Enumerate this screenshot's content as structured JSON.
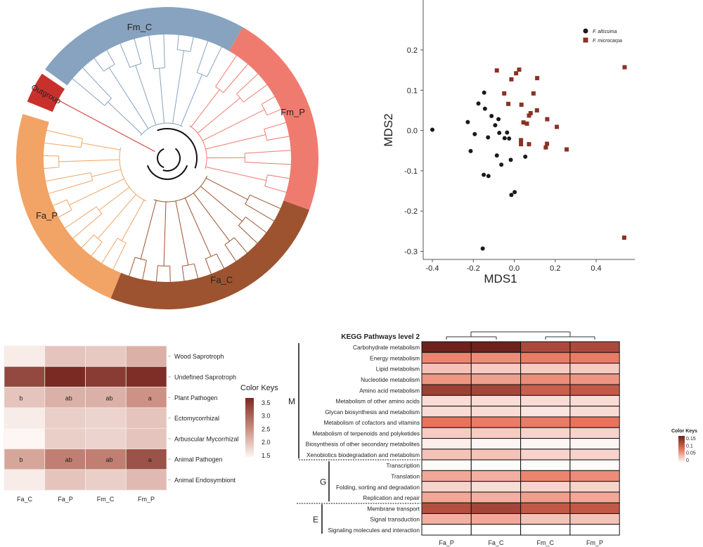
{
  "chart_data": [
    {
      "type": "other",
      "kind": "circular-dendrogram",
      "clades": [
        {
          "label": "Fm_C",
          "color": "#87a3c0",
          "leaves": 12
        },
        {
          "label": "Fm_P",
          "color": "#ef7b6f",
          "leaves": 12
        },
        {
          "label": "Fa_C",
          "color": "#9d5330",
          "leaves": 14
        },
        {
          "label": "Fa_P",
          "color": "#f1a466",
          "leaves": 14
        },
        {
          "label": "Outgroup",
          "color": "#c8312b",
          "leaves": 1
        }
      ]
    },
    {
      "type": "scatter",
      "xlabel": "MDS1",
      "ylabel": "MDS2",
      "xlim": [
        -0.45,
        0.57
      ],
      "ylim": [
        -0.32,
        0.28
      ],
      "xticks": [
        "-0.4",
        "-0.2",
        "0.0",
        "0.2",
        "0.4"
      ],
      "yticks": [
        "0.2",
        "0.1",
        "0.0",
        "-0.1",
        "-0.2",
        "-0.3"
      ],
      "legend_position": "top-right",
      "series": [
        {
          "name": "F. altissima",
          "marker": "circle",
          "color": "#1a1a1a",
          "points": [
            [
              -0.4,
              0.002
            ],
            [
              -0.147,
              0.094
            ],
            [
              -0.175,
              0.067
            ],
            [
              -0.143,
              0.054
            ],
            [
              -0.111,
              0.036
            ],
            [
              -0.077,
              0.028
            ],
            [
              -0.227,
              0.021
            ],
            [
              -0.093,
              0.013
            ],
            [
              -0.193,
              -0.009
            ],
            [
              -0.128,
              -0.017
            ],
            [
              -0.073,
              -0.006
            ],
            [
              -0.035,
              -0.005
            ],
            [
              -0.047,
              -0.019
            ],
            [
              -0.025,
              -0.02
            ],
            [
              -0.213,
              -0.051
            ],
            [
              -0.085,
              -0.062
            ],
            [
              0.054,
              -0.065
            ],
            [
              -0.063,
              -0.085
            ],
            [
              -0.017,
              -0.073
            ],
            [
              -0.149,
              -0.11
            ],
            [
              -0.126,
              -0.113
            ],
            [
              -0.014,
              -0.16
            ],
            [
              0.002,
              -0.153
            ],
            [
              -0.154,
              -0.293
            ]
          ]
        },
        {
          "name": "F. microcarpa",
          "marker": "square",
          "color": "#8b3124",
          "points": [
            [
              -0.085,
              0.149
            ],
            [
              0.009,
              0.142
            ],
            [
              0.024,
              0.151
            ],
            [
              -0.014,
              0.127
            ],
            [
              0.112,
              0.13
            ],
            [
              -0.049,
              0.092
            ],
            [
              0.094,
              0.092
            ],
            [
              -0.029,
              0.066
            ],
            [
              0.035,
              0.064
            ],
            [
              0.111,
              0.05
            ],
            [
              0.072,
              0.037
            ],
            [
              0.08,
              0.043
            ],
            [
              0.045,
              0.02
            ],
            [
              0.062,
              0.017
            ],
            [
              0.161,
              0.028
            ],
            [
              0.208,
              0.009
            ],
            [
              0.033,
              -0.024
            ],
            [
              0.033,
              -0.034
            ],
            [
              0.072,
              -0.034
            ],
            [
              0.16,
              -0.033
            ],
            [
              0.154,
              -0.042
            ],
            [
              0.256,
              -0.047
            ],
            [
              0.539,
              0.157
            ],
            [
              0.537,
              -0.266
            ]
          ]
        }
      ]
    },
    {
      "type": "heatmap",
      "columns": [
        "Fa_C",
        "Fa_P",
        "Fm_C",
        "Fm_P"
      ],
      "rows": [
        "Wood Saprotroph",
        "Undefined Saprotroph",
        "Plant Pathogen",
        "Ectomycorrhizal",
        "Arbuscular Mycorrhizal",
        "Animal Pathogen",
        "Animal Endosymbiont"
      ],
      "values": [
        [
          1.6,
          2.0,
          1.95,
          2.2
        ],
        [
          3.3,
          3.65,
          3.45,
          3.6
        ],
        [
          2.0,
          2.2,
          2.2,
          2.5
        ],
        [
          1.6,
          1.9,
          1.85,
          2.0
        ],
        [
          1.5,
          1.9,
          1.85,
          2.0
        ],
        [
          2.3,
          2.7,
          2.7,
          3.2
        ],
        [
          1.6,
          2.0,
          1.9,
          2.1
        ]
      ],
      "cell_labels": [
        [
          "",
          "",
          "",
          ""
        ],
        [
          "",
          "",
          "",
          ""
        ],
        [
          "b",
          "ab",
          "ab",
          "a"
        ],
        [
          "",
          "",
          "",
          ""
        ],
        [
          "",
          "",
          "",
          ""
        ],
        [
          "b",
          "ab",
          "ab",
          "a"
        ],
        [
          "",
          "",
          "",
          ""
        ]
      ],
      "legend_title": "Color Keys",
      "legend_ticks": [
        "3.5",
        "3.0",
        "2.5",
        "2.0",
        "1.5"
      ],
      "range": [
        1.5,
        3.65
      ],
      "colors": [
        "#fdf6f4",
        "#c98a7d",
        "#7a2a22"
      ]
    },
    {
      "type": "heatmap",
      "title": "KEGG Pathways level 2",
      "columns": [
        "Fa_P",
        "Fa_C",
        "Fm_C",
        "Fm_P"
      ],
      "rows": [
        "Carbohydrate metabolism",
        "Energy metabolism",
        "Lipid metabolism",
        "Nucleotide metabolism",
        "Amino acid metabolism",
        "Metabolism of other amino acids",
        "Glycan biosynthesis and metabolism",
        "Metabolism of cofactors and vitamins",
        "Metabolism of terpenoids and polyketides",
        "Biosynthesis of other secondary metabolites",
        "Xenobiotics biodegradation and metabolism",
        "Transcription",
        "Translation",
        "Folding, sorting and degradation",
        "Replication and repair",
        "Membrane transport",
        "Signal transduction",
        "Signaling molecules and interaction"
      ],
      "values": [
        [
          0.16,
          0.16,
          0.12,
          0.12
        ],
        [
          0.07,
          0.065,
          0.075,
          0.075
        ],
        [
          0.035,
          0.03,
          0.03,
          0.03
        ],
        [
          0.06,
          0.055,
          0.065,
          0.06
        ],
        [
          0.13,
          0.125,
          0.1,
          0.105
        ],
        [
          0.02,
          0.02,
          0.02,
          0.02
        ],
        [
          0.02,
          0.02,
          0.015,
          0.02
        ],
        [
          0.08,
          0.075,
          0.075,
          0.08
        ],
        [
          0.03,
          0.03,
          0.025,
          0.025
        ],
        [
          0.01,
          0.005,
          0.005,
          0.005
        ],
        [
          0.035,
          0.035,
          0.025,
          0.025
        ],
        [
          0.002,
          0.002,
          0.002,
          0.002
        ],
        [
          0.05,
          0.045,
          0.07,
          0.065
        ],
        [
          0.025,
          0.02,
          0.025,
          0.025
        ],
        [
          0.05,
          0.045,
          0.055,
          0.05
        ],
        [
          0.115,
          0.125,
          0.105,
          0.105
        ],
        [
          0.045,
          0.05,
          0.035,
          0.035
        ],
        [
          0,
          0,
          0,
          0
        ]
      ],
      "groups": [
        {
          "label": "M",
          "rows": [
            0,
            10
          ]
        },
        {
          "label": "G",
          "rows": [
            11,
            14
          ]
        },
        {
          "label": "E",
          "rows": [
            15,
            17
          ]
        }
      ],
      "legend_title": "Color Keys",
      "legend_ticks": [
        "0.15",
        "0.1",
        "0.05",
        "0"
      ],
      "range": [
        0,
        0.16
      ],
      "colors": [
        "#ffffff",
        "#e8735a",
        "#6e211d"
      ]
    }
  ]
}
